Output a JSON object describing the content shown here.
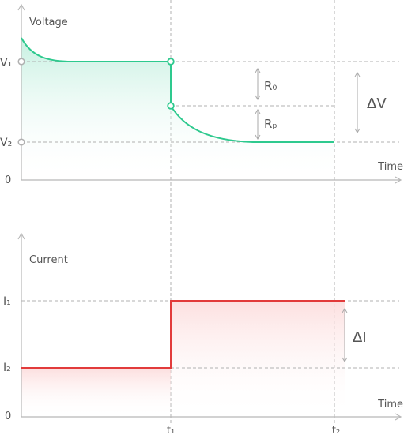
{
  "voltage_panel": {
    "ylabel": "Voltage",
    "xlabel": "Time",
    "ticks": {
      "v1": "V₁",
      "v2": "V₂",
      "zero": "0"
    },
    "labels": {
      "r0": "R₀",
      "rp": "Rₚ",
      "delta_v": "ΔV"
    }
  },
  "current_panel": {
    "ylabel": "Current",
    "xlabel": "Time",
    "ticks": {
      "i1": "I₁",
      "i2": "I₂",
      "zero": "0"
    },
    "labels": {
      "delta_i": "ΔI"
    }
  },
  "time_ticks": {
    "t1": "t₁",
    "t2": "t₂"
  },
  "colors": {
    "voltage_line": "#2ec98e",
    "current_line": "#e23b3b",
    "axis": "#b8b8b8"
  }
}
